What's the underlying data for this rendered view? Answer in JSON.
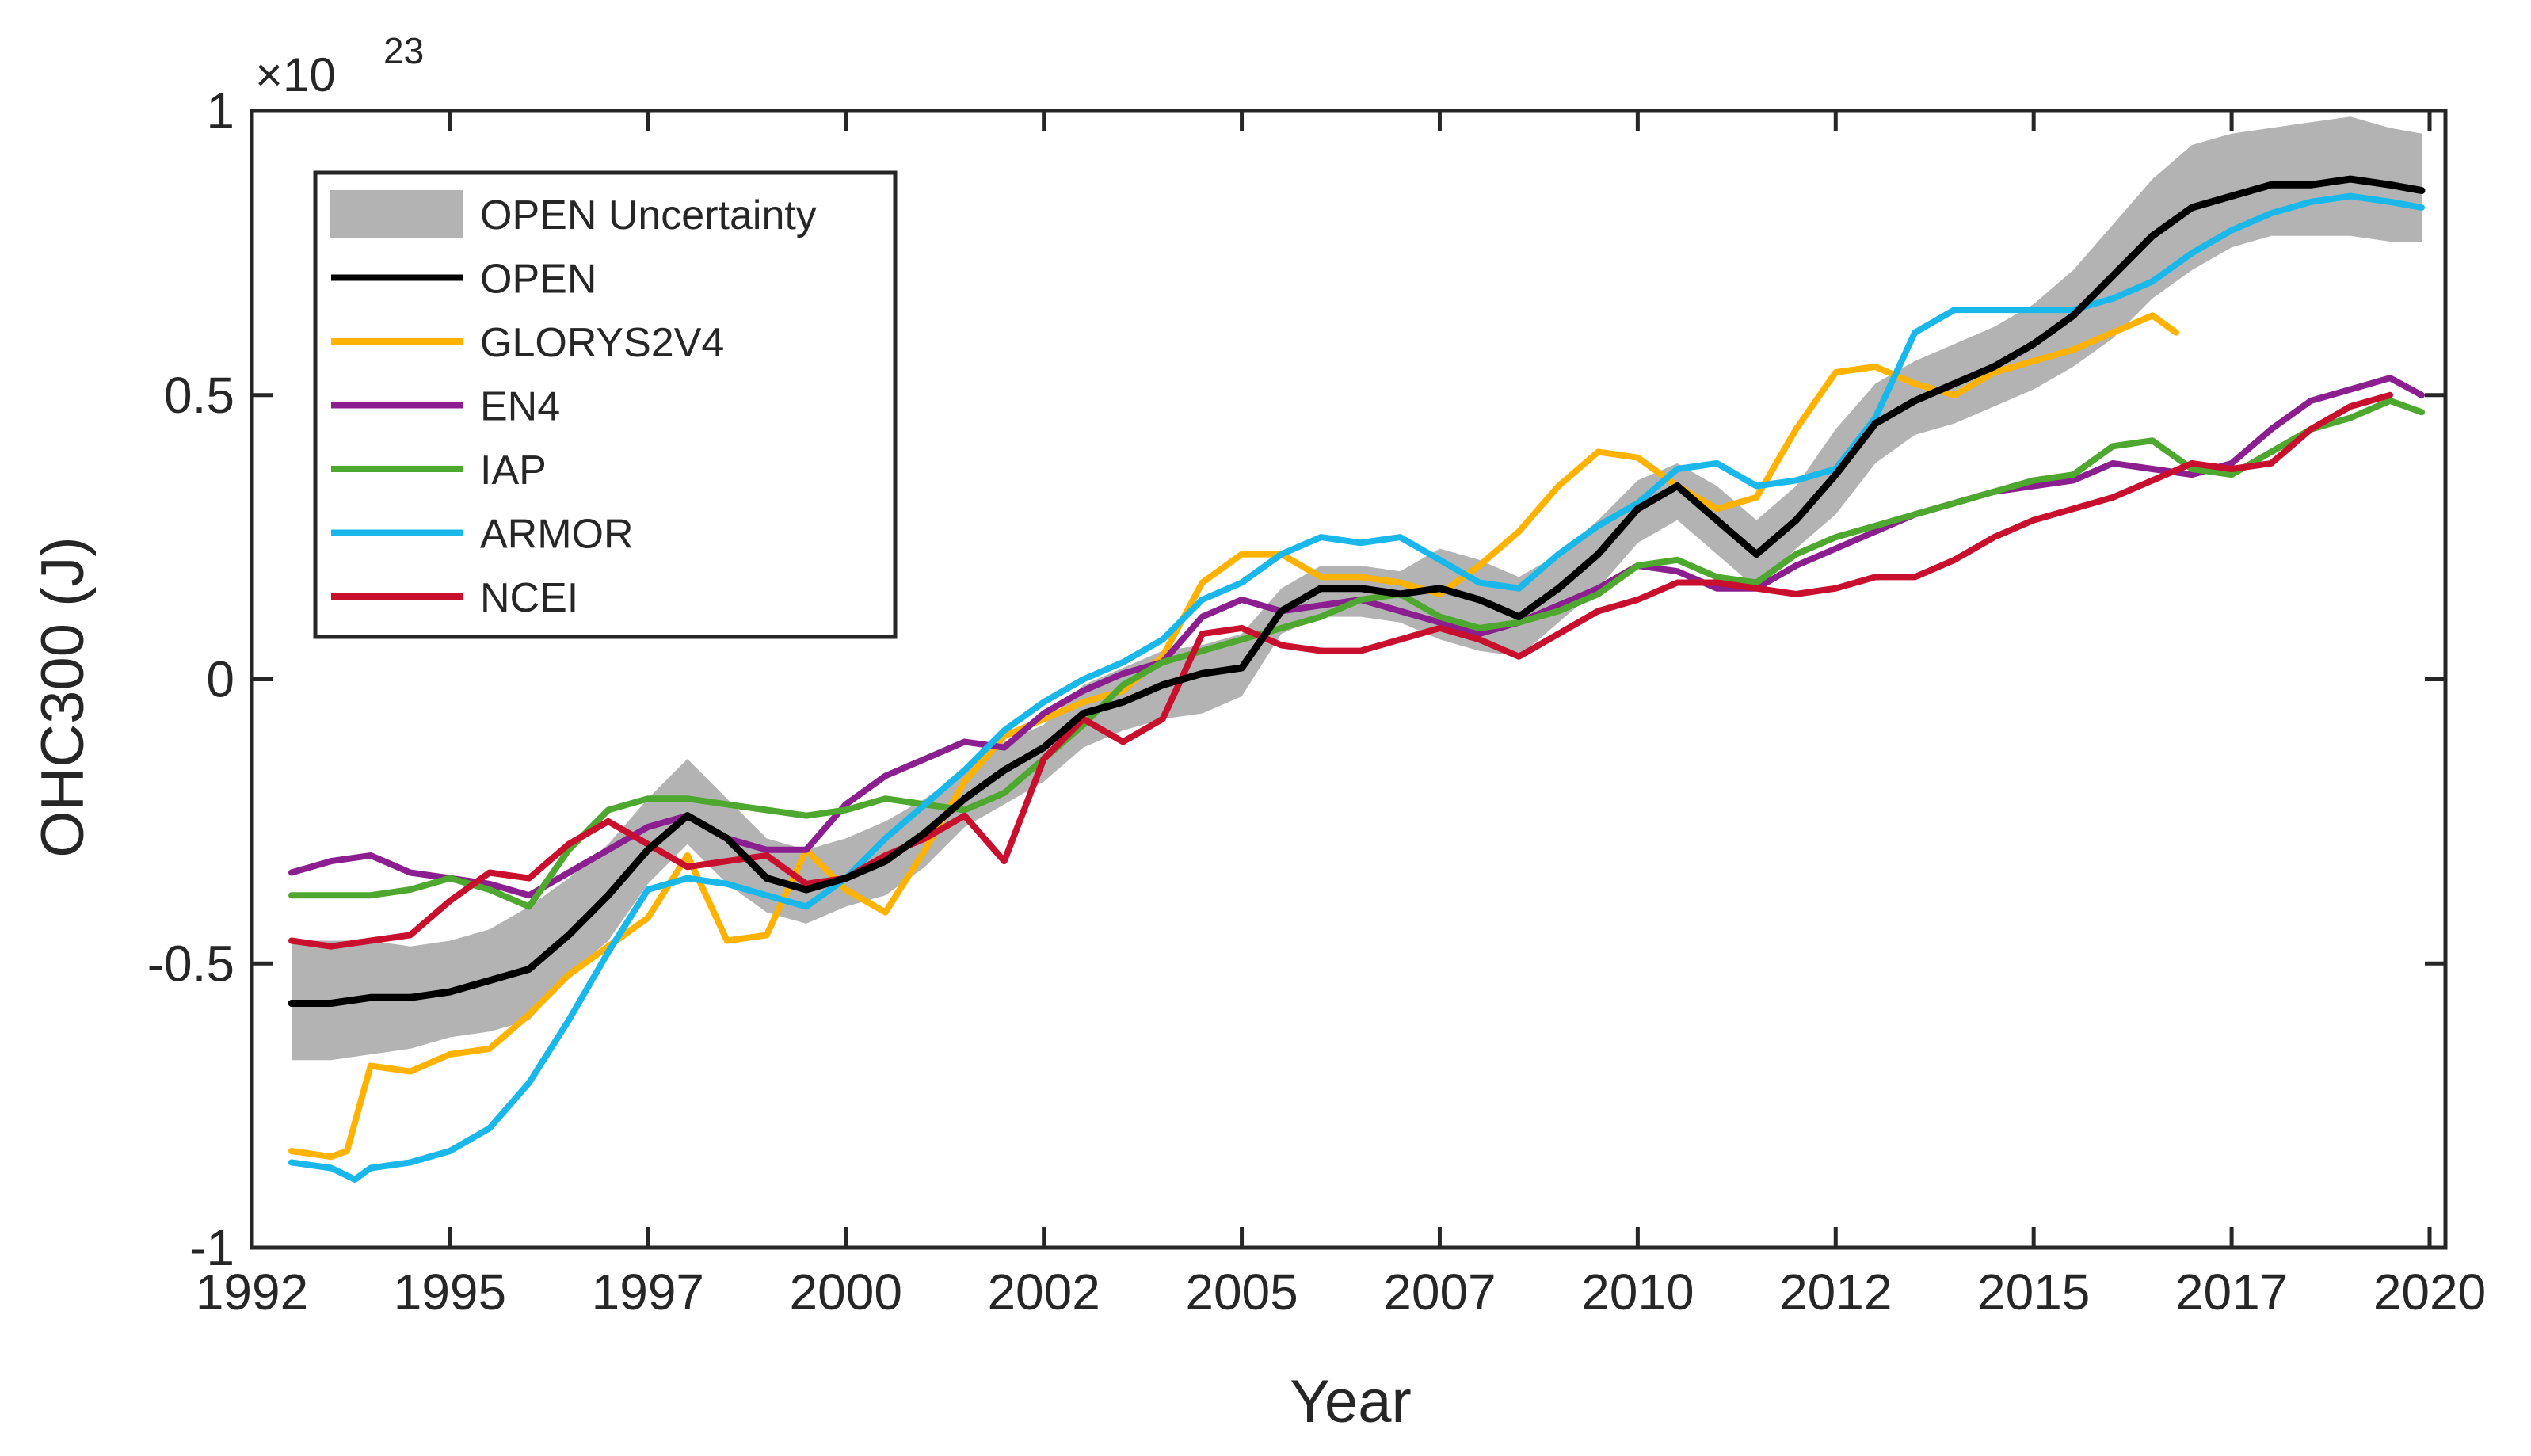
{
  "chart_data": {
    "type": "line",
    "title": "",
    "xlabel": "Year",
    "ylabel": "OHC300 (J)",
    "y_multiplier": {
      "base": "×10",
      "exponent": "23"
    },
    "xlim": [
      1992.0,
      2019.7
    ],
    "ylim": [
      -1,
      1
    ],
    "xticks": [
      1992.0,
      1994.5,
      1997.0,
      1999.5,
      2002.0,
      2004.5,
      2007.0,
      2009.5,
      2012.0,
      2014.5,
      2017.0,
      2019.5
    ],
    "xtick_labels": [
      "1992",
      "1995",
      "1997",
      "2000",
      "2002",
      "2005",
      "2007",
      "2010",
      "2012",
      "2015",
      "2017",
      "2020"
    ],
    "yticks": [
      -1,
      -0.5,
      0,
      0.5,
      1
    ],
    "ytick_labels": [
      "-1",
      "-0.5",
      "0",
      "0.5",
      "1"
    ],
    "legend_position": "top-left",
    "band": {
      "name": "OPEN Uncertainty",
      "color": "#b3b3b3",
      "x": [
        1992.5,
        1993.0,
        1993.5,
        1994.0,
        1994.5,
        1995.0,
        1995.5,
        1996.0,
        1996.5,
        1997.0,
        1997.5,
        1998.0,
        1998.5,
        1999.0,
        1999.5,
        2000.0,
        2000.5,
        2001.0,
        2001.5,
        2002.0,
        2002.5,
        2003.0,
        2003.5,
        2004.0,
        2004.5,
        2005.0,
        2005.5,
        2006.0,
        2006.5,
        2007.0,
        2007.5,
        2008.0,
        2008.5,
        2009.0,
        2009.5,
        2010.0,
        2010.5,
        2011.0,
        2011.5,
        2012.0,
        2012.5,
        2013.0,
        2013.5,
        2014.0,
        2014.5,
        2015.0,
        2015.5,
        2016.0,
        2016.5,
        2017.0,
        2017.5,
        2018.0,
        2018.5,
        2019.0,
        2019.4
      ],
      "lower": [
        -0.67,
        -0.67,
        -0.66,
        -0.65,
        -0.63,
        -0.62,
        -0.6,
        -0.52,
        -0.46,
        -0.36,
        -0.29,
        -0.36,
        -0.41,
        -0.43,
        -0.4,
        -0.38,
        -0.33,
        -0.26,
        -0.22,
        -0.18,
        -0.12,
        -0.09,
        -0.07,
        -0.06,
        -0.03,
        0.08,
        0.11,
        0.11,
        0.1,
        0.07,
        0.05,
        0.04,
        0.1,
        0.16,
        0.24,
        0.28,
        0.22,
        0.16,
        0.23,
        0.29,
        0.38,
        0.43,
        0.45,
        0.48,
        0.51,
        0.55,
        0.6,
        0.67,
        0.72,
        0.76,
        0.78,
        0.78,
        0.78,
        0.77,
        0.77
      ],
      "upper": [
        -0.46,
        -0.46,
        -0.46,
        -0.47,
        -0.46,
        -0.44,
        -0.4,
        -0.35,
        -0.29,
        -0.21,
        -0.14,
        -0.21,
        -0.28,
        -0.3,
        -0.28,
        -0.25,
        -0.21,
        -0.16,
        -0.11,
        -0.08,
        -0.01,
        0.02,
        0.05,
        0.06,
        0.08,
        0.16,
        0.2,
        0.2,
        0.19,
        0.23,
        0.21,
        0.18,
        0.22,
        0.28,
        0.35,
        0.38,
        0.34,
        0.28,
        0.34,
        0.44,
        0.52,
        0.56,
        0.59,
        0.62,
        0.66,
        0.72,
        0.8,
        0.88,
        0.94,
        0.96,
        0.97,
        0.98,
        0.99,
        0.97,
        0.96
      ]
    },
    "series": [
      {
        "name": "OPEN",
        "color": "#000000",
        "x": [
          1992.5,
          1993.0,
          1993.5,
          1994.0,
          1994.5,
          1995.0,
          1995.5,
          1996.0,
          1996.5,
          1997.0,
          1997.5,
          1998.0,
          1998.5,
          1999.0,
          1999.5,
          2000.0,
          2000.5,
          2001.0,
          2001.5,
          2002.0,
          2002.5,
          2003.0,
          2003.5,
          2004.0,
          2004.5,
          2005.0,
          2005.5,
          2006.0,
          2006.5,
          2007.0,
          2007.5,
          2008.0,
          2008.5,
          2009.0,
          2009.5,
          2010.0,
          2010.5,
          2011.0,
          2011.5,
          2012.0,
          2012.5,
          2013.0,
          2013.5,
          2014.0,
          2014.5,
          2015.0,
          2015.5,
          2016.0,
          2016.5,
          2017.0,
          2017.5,
          2018.0,
          2018.5,
          2019.0,
          2019.4
        ],
        "values": [
          -0.57,
          -0.57,
          -0.56,
          -0.56,
          -0.55,
          -0.53,
          -0.51,
          -0.45,
          -0.38,
          -0.3,
          -0.24,
          -0.28,
          -0.35,
          -0.37,
          -0.35,
          -0.32,
          -0.27,
          -0.21,
          -0.16,
          -0.12,
          -0.06,
          -0.04,
          -0.01,
          0.01,
          0.02,
          0.12,
          0.16,
          0.16,
          0.15,
          0.16,
          0.14,
          0.11,
          0.16,
          0.22,
          0.3,
          0.34,
          0.28,
          0.22,
          0.28,
          0.36,
          0.45,
          0.49,
          0.52,
          0.55,
          0.59,
          0.64,
          0.71,
          0.78,
          0.83,
          0.85,
          0.87,
          0.87,
          0.88,
          0.87,
          0.86
        ]
      },
      {
        "name": "GLORYS2V4",
        "color": "#ffb300",
        "x": [
          1992.5,
          1993.0,
          1993.2,
          1993.5,
          1994.0,
          1994.5,
          1995.0,
          1995.5,
          1996.0,
          1996.5,
          1997.0,
          1997.5,
          1998.0,
          1998.5,
          1999.0,
          1999.5,
          2000.0,
          2000.5,
          2001.0,
          2001.5,
          2002.0,
          2002.5,
          2003.0,
          2003.5,
          2004.0,
          2004.5,
          2005.0,
          2005.5,
          2006.0,
          2006.5,
          2007.0,
          2007.5,
          2008.0,
          2008.5,
          2009.0,
          2009.5,
          2010.0,
          2010.5,
          2011.0,
          2011.5,
          2012.0,
          2012.5,
          2013.0,
          2013.5,
          2014.0,
          2014.5,
          2015.0,
          2015.5,
          2016.0,
          2016.3
        ],
        "values": [
          -0.83,
          -0.84,
          -0.83,
          -0.68,
          -0.69,
          -0.66,
          -0.65,
          -0.59,
          -0.52,
          -0.47,
          -0.42,
          -0.31,
          -0.46,
          -0.45,
          -0.3,
          -0.37,
          -0.41,
          -0.3,
          -0.18,
          -0.1,
          -0.07,
          -0.04,
          -0.02,
          0.04,
          0.17,
          0.22,
          0.22,
          0.18,
          0.18,
          0.17,
          0.15,
          0.2,
          0.26,
          0.34,
          0.4,
          0.39,
          0.34,
          0.3,
          0.32,
          0.44,
          0.54,
          0.55,
          0.52,
          0.5,
          0.54,
          0.56,
          0.58,
          0.61,
          0.64,
          0.61
        ]
      },
      {
        "name": "EN4",
        "color": "#8b1f8f",
        "x": [
          1992.5,
          1993.0,
          1993.5,
          1994.0,
          1994.5,
          1995.0,
          1995.5,
          1996.0,
          1996.5,
          1997.0,
          1997.5,
          1998.0,
          1998.5,
          1999.0,
          1999.5,
          2000.0,
          2000.5,
          2001.0,
          2001.5,
          2002.0,
          2002.5,
          2003.0,
          2003.5,
          2004.0,
          2004.5,
          2005.0,
          2005.5,
          2006.0,
          2006.5,
          2007.0,
          2007.5,
          2008.0,
          2008.5,
          2009.0,
          2009.5,
          2010.0,
          2010.5,
          2011.0,
          2011.5,
          2012.0,
          2012.5,
          2013.0,
          2013.5,
          2014.0,
          2014.5,
          2015.0,
          2015.5,
          2016.0,
          2016.5,
          2017.0,
          2017.5,
          2018.0,
          2018.5,
          2019.0,
          2019.4
        ],
        "values": [
          -0.34,
          -0.32,
          -0.31,
          -0.34,
          -0.35,
          -0.36,
          -0.38,
          -0.34,
          -0.3,
          -0.26,
          -0.24,
          -0.28,
          -0.3,
          -0.3,
          -0.22,
          -0.17,
          -0.14,
          -0.11,
          -0.12,
          -0.06,
          -0.02,
          0.01,
          0.03,
          0.11,
          0.14,
          0.12,
          0.13,
          0.14,
          0.12,
          0.1,
          0.08,
          0.1,
          0.13,
          0.16,
          0.2,
          0.19,
          0.16,
          0.16,
          0.2,
          0.23,
          0.26,
          0.29,
          0.31,
          0.33,
          0.34,
          0.35,
          0.38,
          0.37,
          0.36,
          0.38,
          0.44,
          0.49,
          0.51,
          0.53,
          0.5
        ]
      },
      {
        "name": "IAP",
        "color": "#4ea72e",
        "x": [
          1992.5,
          1993.0,
          1993.5,
          1994.0,
          1994.5,
          1995.0,
          1995.5,
          1996.0,
          1996.5,
          1997.0,
          1997.5,
          1998.0,
          1998.5,
          1999.0,
          1999.5,
          2000.0,
          2000.5,
          2001.0,
          2001.5,
          2002.0,
          2002.5,
          2003.0,
          2003.5,
          2004.0,
          2004.5,
          2005.0,
          2005.5,
          2006.0,
          2006.5,
          2007.0,
          2007.5,
          2008.0,
          2008.5,
          2009.0,
          2009.5,
          2010.0,
          2010.5,
          2011.0,
          2011.5,
          2012.0,
          2012.5,
          2013.0,
          2013.5,
          2014.0,
          2014.5,
          2015.0,
          2015.5,
          2016.0,
          2016.5,
          2017.0,
          2017.5,
          2018.0,
          2018.5,
          2019.0,
          2019.4
        ],
        "values": [
          -0.38,
          -0.38,
          -0.38,
          -0.37,
          -0.35,
          -0.37,
          -0.4,
          -0.3,
          -0.23,
          -0.21,
          -0.21,
          -0.22,
          -0.23,
          -0.24,
          -0.23,
          -0.21,
          -0.22,
          -0.23,
          -0.2,
          -0.14,
          -0.08,
          -0.01,
          0.03,
          0.05,
          0.07,
          0.09,
          0.11,
          0.14,
          0.15,
          0.11,
          0.09,
          0.1,
          0.12,
          0.15,
          0.2,
          0.21,
          0.18,
          0.17,
          0.22,
          0.25,
          0.27,
          0.29,
          0.31,
          0.33,
          0.35,
          0.36,
          0.41,
          0.42,
          0.37,
          0.36,
          0.4,
          0.44,
          0.46,
          0.49,
          0.47
        ]
      },
      {
        "name": "ARMOR",
        "color": "#1ab8ea",
        "x": [
          1992.5,
          1993.0,
          1993.3,
          1993.5,
          1994.0,
          1994.5,
          1995.0,
          1995.5,
          1996.0,
          1996.5,
          1997.0,
          1997.5,
          1998.0,
          1998.5,
          1999.0,
          1999.5,
          2000.0,
          2000.5,
          2001.0,
          2001.5,
          2002.0,
          2002.5,
          2003.0,
          2003.5,
          2004.0,
          2004.5,
          2005.0,
          2005.5,
          2006.0,
          2006.5,
          2007.0,
          2007.5,
          2008.0,
          2008.5,
          2009.0,
          2009.5,
          2010.0,
          2010.5,
          2011.0,
          2011.5,
          2012.0,
          2012.5,
          2013.0,
          2013.5,
          2014.0,
          2014.5,
          2015.0,
          2015.5,
          2016.0,
          2016.5,
          2017.0,
          2017.5,
          2018.0,
          2018.5,
          2019.0,
          2019.4
        ],
        "values": [
          -0.85,
          -0.86,
          -0.88,
          -0.86,
          -0.85,
          -0.83,
          -0.79,
          -0.71,
          -0.6,
          -0.48,
          -0.37,
          -0.35,
          -0.36,
          -0.38,
          -0.4,
          -0.35,
          -0.28,
          -0.22,
          -0.16,
          -0.09,
          -0.04,
          0.0,
          0.03,
          0.07,
          0.14,
          0.17,
          0.22,
          0.25,
          0.24,
          0.25,
          0.21,
          0.17,
          0.16,
          0.22,
          0.27,
          0.31,
          0.37,
          0.38,
          0.34,
          0.35,
          0.37,
          0.46,
          0.61,
          0.65,
          0.65,
          0.65,
          0.65,
          0.67,
          0.7,
          0.75,
          0.79,
          0.82,
          0.84,
          0.85,
          0.84,
          0.83
        ]
      },
      {
        "name": "NCEI",
        "color": "#c8102e",
        "x": [
          1992.5,
          1993.0,
          1993.5,
          1994.0,
          1994.5,
          1995.0,
          1995.5,
          1996.0,
          1996.5,
          1997.0,
          1997.5,
          1998.0,
          1998.5,
          1999.0,
          1999.5,
          2000.0,
          2000.5,
          2001.0,
          2001.5,
          2002.0,
          2002.5,
          2003.0,
          2003.5,
          2004.0,
          2004.5,
          2005.0,
          2005.5,
          2006.0,
          2006.5,
          2007.0,
          2007.5,
          2008.0,
          2008.5,
          2009.0,
          2009.5,
          2010.0,
          2010.5,
          2011.0,
          2011.5,
          2012.0,
          2012.5,
          2013.0,
          2013.5,
          2014.0,
          2014.5,
          2015.0,
          2015.5,
          2016.0,
          2016.5,
          2017.0,
          2017.5,
          2018.0,
          2018.5,
          2019.0
        ],
        "values": [
          -0.46,
          -0.47,
          -0.46,
          -0.45,
          -0.39,
          -0.34,
          -0.35,
          -0.29,
          -0.25,
          -0.29,
          -0.33,
          -0.32,
          -0.31,
          -0.36,
          -0.35,
          -0.31,
          -0.28,
          -0.24,
          -0.32,
          -0.14,
          -0.07,
          -0.11,
          -0.07,
          0.08,
          0.09,
          0.06,
          0.05,
          0.05,
          0.07,
          0.09,
          0.07,
          0.04,
          0.08,
          0.12,
          0.14,
          0.17,
          0.17,
          0.16,
          0.15,
          0.16,
          0.18,
          0.18,
          0.21,
          0.25,
          0.28,
          0.3,
          0.32,
          0.35,
          0.38,
          0.37,
          0.38,
          0.44,
          0.48,
          0.5
        ]
      }
    ]
  }
}
